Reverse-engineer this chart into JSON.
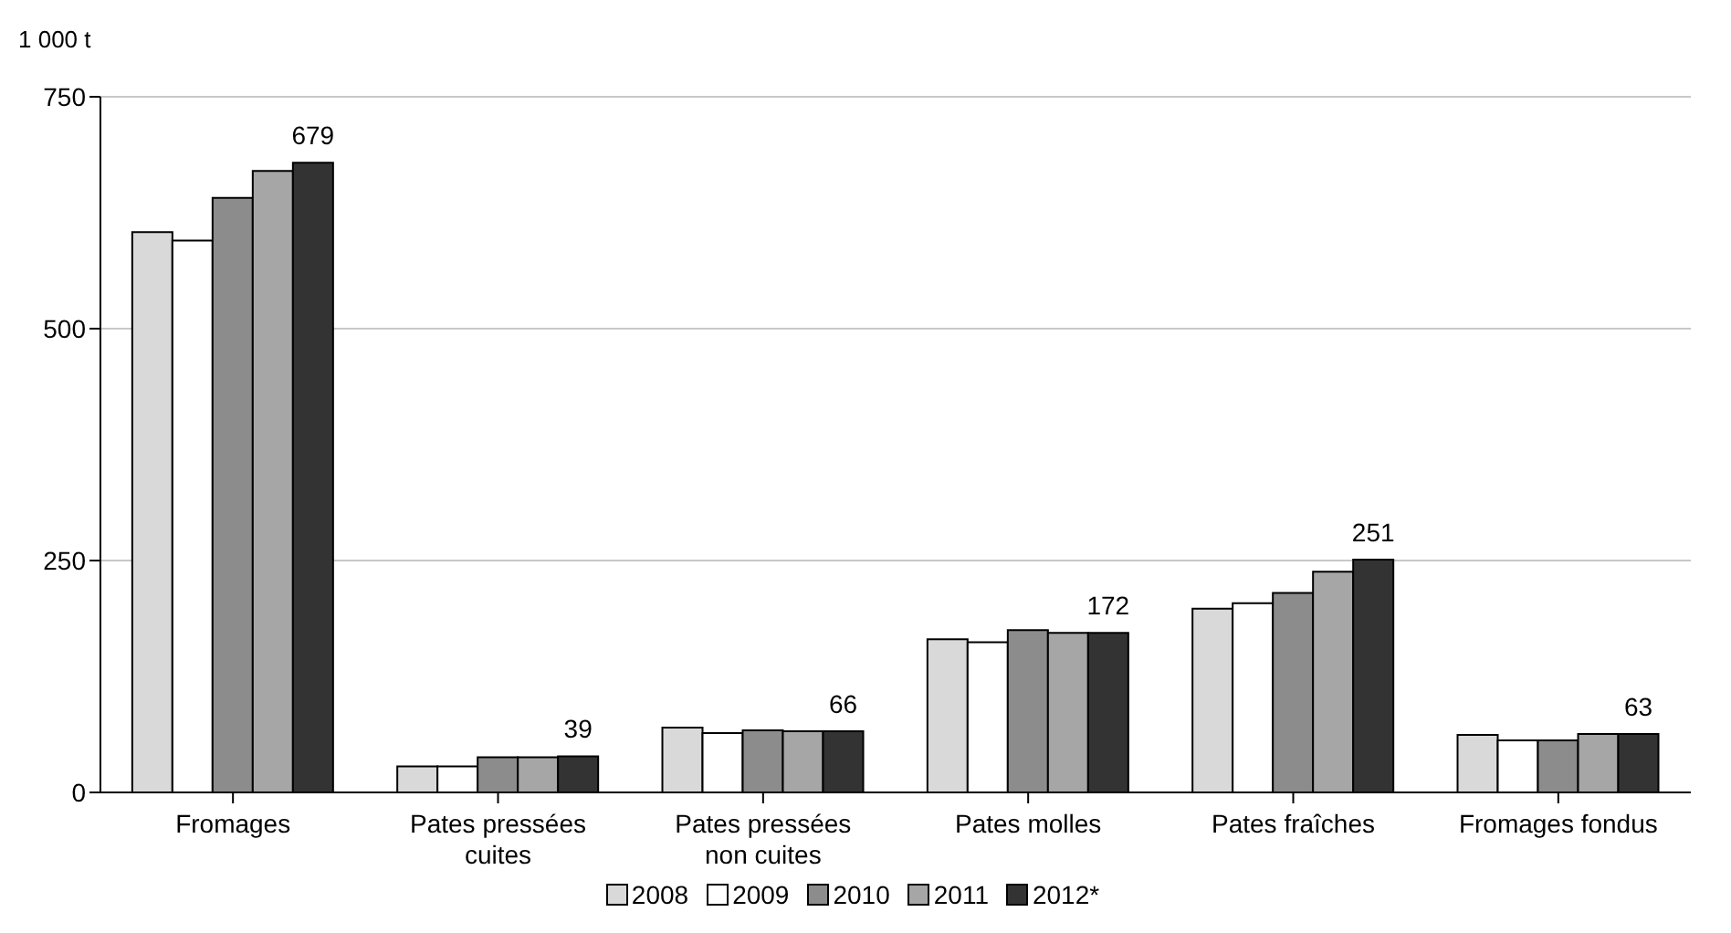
{
  "chart_data": {
    "type": "bar",
    "ylabel": "1 000 t",
    "categories": [
      "Fromages",
      "Pates pressées cuites",
      "Pates pressées non cuites",
      "Pates molles",
      "Pates fraîches",
      "Fromages fondus"
    ],
    "series": [
      {
        "name": "2008",
        "color": "#d9d9d9",
        "values": [
          604,
          28,
          70,
          165,
          198,
          62
        ]
      },
      {
        "name": "2009",
        "color": "#ffffff",
        "values": [
          595,
          28,
          64,
          162,
          204,
          56
        ]
      },
      {
        "name": "2010",
        "color": "#8c8c8c",
        "values": [
          641,
          38,
          67,
          175,
          215,
          56
        ]
      },
      {
        "name": "2011",
        "color": "#a6a6a6",
        "values": [
          670,
          38,
          66,
          172,
          238,
          63
        ]
      },
      {
        "name": "2012*",
        "color": "#333333",
        "values": [
          679,
          39,
          66,
          172,
          251,
          63
        ],
        "value_labels": [
          "679",
          "39",
          "66",
          "172",
          "251",
          "63"
        ]
      }
    ],
    "ylim": [
      0,
      750
    ],
    "yticks": [
      0,
      250,
      500,
      750
    ],
    "grid": "y",
    "legend": "bottom"
  }
}
